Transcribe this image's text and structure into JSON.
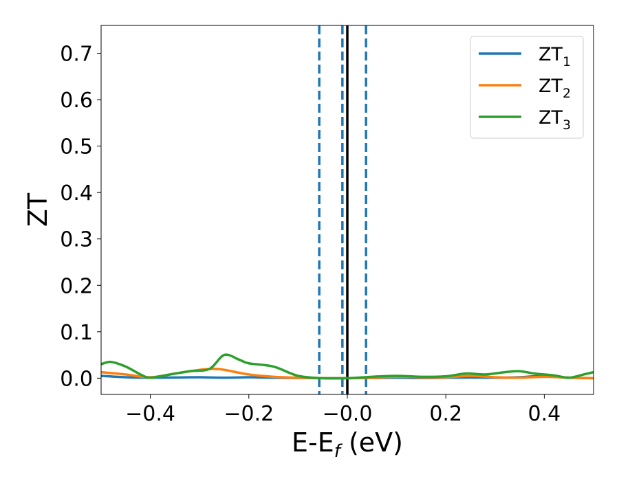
{
  "chart_data": {
    "type": "line",
    "xlabel_main": "E-E",
    "xlabel_sub": "f",
    "xlabel_unit": " (eV)",
    "ylabel": "ZT",
    "xlim": [
      -0.5,
      0.5
    ],
    "ylim": [
      -0.035,
      0.76
    ],
    "x_ticks": [
      {
        "value": -0.4,
        "label": "−0.4"
      },
      {
        "value": -0.2,
        "label": "−0.2"
      },
      {
        "value": 0.0,
        "label": "−0.0"
      },
      {
        "value": 0.2,
        "label": "0.2"
      },
      {
        "value": 0.4,
        "label": "0.4"
      }
    ],
    "y_ticks": [
      {
        "value": 0.0,
        "label": "0.0"
      },
      {
        "value": 0.1,
        "label": "0.1"
      },
      {
        "value": 0.2,
        "label": "0.2"
      },
      {
        "value": 0.3,
        "label": "0.3"
      },
      {
        "value": 0.4,
        "label": "0.4"
      },
      {
        "value": 0.5,
        "label": "0.5"
      },
      {
        "value": 0.6,
        "label": "0.6"
      },
      {
        "value": 0.7,
        "label": "0.7"
      }
    ],
    "legend_position": "top-right",
    "grid": false,
    "series": [
      {
        "name_main": "ZT",
        "name_sub": "1",
        "color": "#1f77b4",
        "x": [
          -0.5,
          -0.45,
          -0.4,
          -0.35,
          -0.3,
          -0.25,
          -0.2,
          -0.15,
          -0.1,
          -0.05,
          0.0,
          0.05,
          0.1,
          0.15,
          0.2,
          0.25,
          0.3,
          0.35,
          0.4,
          0.45,
          0.5
        ],
        "y": [
          0.005,
          0.002,
          0.001,
          0.0015,
          0.002,
          0.001,
          0.002,
          0.001,
          0.0005,
          0.0,
          0.0,
          0.0005,
          0.001,
          0.0005,
          0.001,
          0.0015,
          0.001,
          0.002,
          0.005,
          0.001,
          0.0
        ]
      },
      {
        "name_main": "ZT",
        "name_sub": "2",
        "color": "#ff7f0e",
        "x": [
          -0.5,
          -0.45,
          -0.4,
          -0.35,
          -0.3,
          -0.27,
          -0.25,
          -0.2,
          -0.15,
          -0.1,
          -0.05,
          0.0,
          0.05,
          0.1,
          0.15,
          0.2,
          0.25,
          0.3,
          0.35,
          0.4,
          0.45,
          0.5
        ],
        "y": [
          0.013,
          0.008,
          0.002,
          0.01,
          0.018,
          0.02,
          0.018,
          0.008,
          0.003,
          0.001,
          0.0,
          0.0,
          0.001,
          0.003,
          0.002,
          0.002,
          0.005,
          0.002,
          0.001,
          0.003,
          0.001,
          0.0
        ]
      },
      {
        "name_main": "ZT",
        "name_sub": "3",
        "color": "#2ca02c",
        "x": [
          -0.5,
          -0.48,
          -0.45,
          -0.42,
          -0.4,
          -0.36,
          -0.32,
          -0.28,
          -0.25,
          -0.22,
          -0.2,
          -0.15,
          -0.1,
          -0.05,
          0.0,
          0.05,
          0.1,
          0.15,
          0.2,
          0.24,
          0.28,
          0.32,
          0.35,
          0.38,
          0.42,
          0.45,
          0.48,
          0.5
        ],
        "y": [
          0.03,
          0.035,
          0.025,
          0.008,
          0.001,
          0.008,
          0.015,
          0.02,
          0.05,
          0.04,
          0.032,
          0.025,
          0.005,
          0.0,
          0.0,
          0.003,
          0.005,
          0.003,
          0.004,
          0.01,
          0.008,
          0.013,
          0.015,
          0.01,
          0.006,
          0.001,
          0.008,
          0.013
        ]
      }
    ],
    "vlines": [
      {
        "x": -0.057,
        "style": "dashed",
        "color": "#1f77b4"
      },
      {
        "x": -0.01,
        "style": "dashed",
        "color": "#1f77b4"
      },
      {
        "x": 0.0,
        "style": "solid",
        "color": "#000000"
      },
      {
        "x": 0.038,
        "style": "dashed",
        "color": "#1f77b4"
      }
    ]
  }
}
